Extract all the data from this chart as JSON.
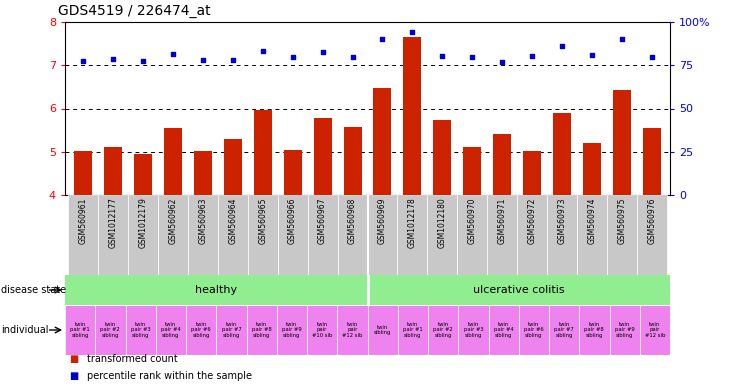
{
  "title": "GDS4519 / 226474_at",
  "samples": [
    "GSM560961",
    "GSM1012177",
    "GSM1012179",
    "GSM560962",
    "GSM560963",
    "GSM560964",
    "GSM560965",
    "GSM560966",
    "GSM560967",
    "GSM560968",
    "GSM560969",
    "GSM1012178",
    "GSM1012180",
    "GSM560970",
    "GSM560971",
    "GSM560972",
    "GSM560973",
    "GSM560974",
    "GSM560975",
    "GSM560976"
  ],
  "bar_values": [
    5.02,
    5.1,
    4.95,
    5.55,
    5.02,
    5.3,
    5.96,
    5.05,
    5.79,
    5.57,
    6.48,
    7.65,
    5.73,
    5.1,
    5.42,
    5.02,
    5.9,
    5.2,
    6.42,
    5.56
  ],
  "dot_values": [
    7.1,
    7.15,
    7.1,
    7.25,
    7.12,
    7.12,
    7.32,
    7.18,
    7.3,
    7.2,
    7.6,
    7.78,
    7.22,
    7.18,
    7.07,
    7.22,
    7.45,
    7.23,
    7.6,
    7.18
  ],
  "ind_labels": [
    "twin\npair #1\nsibling",
    "twin\npair #2\nsibling",
    "twin\npair #3\nsibling",
    "twin\npair #4\nsibling",
    "twin\npair #6\nsibling",
    "twin\npair #7\nsibling",
    "twin\npair #8\nsibling",
    "twin\npair #9\nsibling",
    "twin\npair\n#10 sib",
    "twin\npair\n#12 sib",
    "twin\nsibling",
    "twin\npair #1\nsibling",
    "twin\npair #2\nsibling",
    "twin\npair #3\nsibling",
    "twin\npair #4\nsibling",
    "twin\npair #6\nsibling",
    "twin\npair #7\nsibling",
    "twin\npair #8\nsibling",
    "twin\npair #9\nsibling",
    "twin\npair\n#12 sib"
  ],
  "healthy_count": 10,
  "ylim": [
    4.0,
    8.0
  ],
  "yticks_left": [
    4,
    5,
    6,
    7,
    8
  ],
  "yticks_right": [
    0,
    25,
    50,
    75,
    100
  ],
  "bar_color": "#cc2200",
  "dot_color": "#0000cc",
  "sample_bg": "#c8c8c8",
  "healthy_color": "#90ee90",
  "individual_color": "#ee82ee",
  "hgrid_vals": [
    5,
    6,
    7
  ],
  "legend_bar": "transformed count",
  "legend_dot": "percentile rank within the sample",
  "ds_label": "disease state",
  "ind_label": "individual",
  "title_fontsize": 10,
  "axis_fontsize": 8,
  "label_fontsize": 7,
  "ind_fontsize": 3.8
}
